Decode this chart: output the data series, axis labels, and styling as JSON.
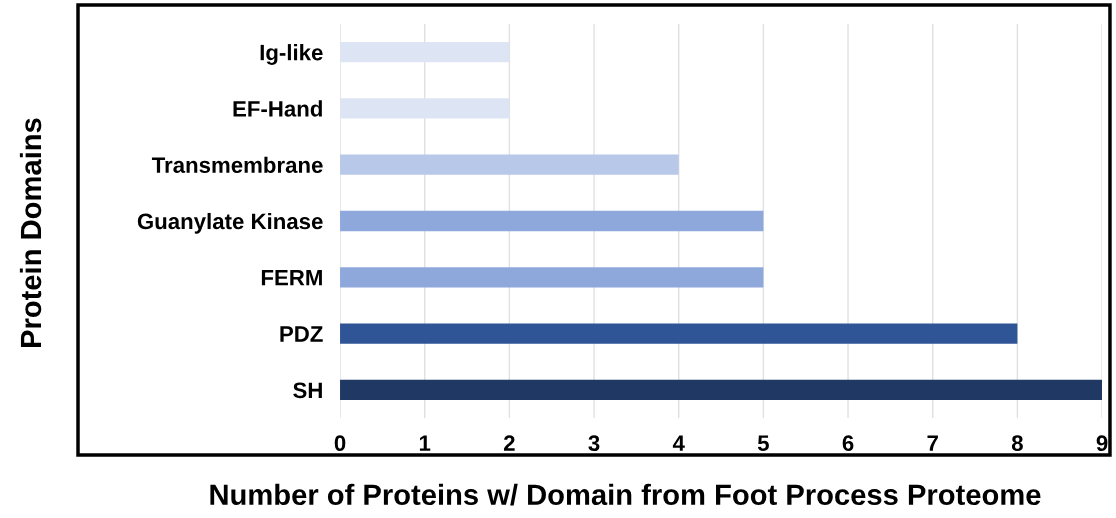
{
  "chart_data": {
    "type": "bar",
    "orientation": "horizontal",
    "xlabel": "Number of Proteins w/ Domain from Foot Process Proteome",
    "ylabel": "Protein Domains",
    "categories": [
      "Ig-like",
      "EF-Hand",
      "Transmembrane",
      "Guanylate Kinase",
      "FERM",
      "PDZ",
      "SH"
    ],
    "values": [
      2,
      2,
      4,
      5,
      5,
      8,
      9
    ],
    "colors": [
      "#dde5f4",
      "#dde5f4",
      "#b7c8e8",
      "#8fa8dc",
      "#8fa8dc",
      "#2f5597",
      "#203864"
    ],
    "xlim": [
      0,
      9
    ],
    "xticks": [
      0,
      1,
      2,
      3,
      4,
      5,
      6,
      7,
      8,
      9
    ],
    "grid": "x",
    "legend": false
  }
}
